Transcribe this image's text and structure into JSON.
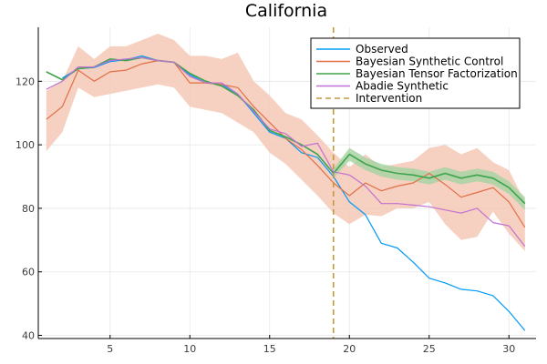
{
  "chart_data": {
    "type": "line",
    "title": "California",
    "xlabel": "",
    "ylabel": "",
    "xlim": [
      0.5,
      31.7
    ],
    "ylim": [
      39,
      137
    ],
    "xticks": [
      5,
      10,
      15,
      20,
      25,
      30
    ],
    "yticks": [
      40,
      60,
      80,
      100,
      120
    ],
    "grid": true,
    "legend_position": "top-right",
    "x": [
      1,
      2,
      3,
      4,
      5,
      6,
      7,
      8,
      9,
      10,
      11,
      12,
      13,
      14,
      15,
      16,
      17,
      18,
      19,
      20,
      21,
      22,
      23,
      24,
      25,
      26,
      27,
      28,
      29,
      30,
      31
    ],
    "series": [
      {
        "name": "Observed",
        "color": "#009AFA",
        "style": "solid",
        "values": [
          null,
          121.0,
          124.0,
          124.3,
          126.2,
          126.8,
          128.0,
          126.5,
          126.0,
          122.0,
          119.5,
          119.0,
          116.0,
          110.0,
          104.0,
          102.0,
          97.5,
          96.0,
          90.0,
          82.0,
          78.0,
          69.0,
          67.5,
          63.0,
          58.0,
          56.5,
          54.5,
          54.0,
          52.5,
          47.5,
          41.5
        ]
      },
      {
        "name": "Bayesian Synthetic Control",
        "color": "#E26F46",
        "style": "solid",
        "band_color": "#F4C8B5",
        "values": [
          108.0,
          112.0,
          123.5,
          120.0,
          123.0,
          123.5,
          125.5,
          126.5,
          126.0,
          119.5,
          119.5,
          119.0,
          118.0,
          112.0,
          107.0,
          102.0,
          98.5,
          93.5,
          88.0,
          84.0,
          88.0,
          85.5,
          87.0,
          88.0,
          91.0,
          87.5,
          83.5,
          85.0,
          86.5,
          82.0,
          74.0
        ],
        "lower": [
          98.0,
          104.0,
          118.0,
          115.0,
          116.0,
          117.0,
          118.0,
          119.0,
          118.0,
          112.0,
          111.0,
          110.0,
          107.0,
          104.0,
          97.5,
          94.0,
          89.0,
          84.0,
          78.5,
          75.0,
          78.0,
          77.5,
          80.0,
          80.0,
          82.0,
          75.0,
          70.0,
          71.0,
          79.0,
          72.0,
          66.5
        ],
        "upper": [
          117.0,
          120.0,
          131.0,
          127.0,
          131.0,
          131.0,
          133.0,
          135.0,
          133.0,
          128.0,
          128.0,
          127.0,
          129.0,
          120.0,
          115.5,
          110.0,
          108.0,
          103.0,
          97.5,
          93.0,
          97.0,
          93.0,
          94.0,
          95.0,
          99.0,
          100.0,
          97.0,
          99.0,
          94.5,
          92.0,
          82.0
        ]
      },
      {
        "name": "Bayesian Tensor Factorization",
        "color": "#3DA44D",
        "style": "solid",
        "band_color": "#A9D3A4",
        "values": [
          123.0,
          120.5,
          124.0,
          124.5,
          127.0,
          126.5,
          127.5,
          126.5,
          126.0,
          122.5,
          120.0,
          118.5,
          115.5,
          111.0,
          104.5,
          102.5,
          100.0,
          97.0,
          91.0,
          97.0,
          94.0,
          92.0,
          91.0,
          90.5,
          89.5,
          91.0,
          89.5,
          90.5,
          89.5,
          86.5,
          81.5
        ],
        "lower": [
          null,
          null,
          null,
          null,
          null,
          null,
          null,
          null,
          null,
          null,
          null,
          null,
          null,
          null,
          null,
          null,
          null,
          null,
          89.5,
          95.0,
          92.0,
          90.0,
          89.0,
          88.5,
          87.5,
          89.0,
          87.5,
          88.5,
          87.5,
          84.5,
          79.5
        ],
        "upper": [
          null,
          null,
          null,
          null,
          null,
          null,
          null,
          null,
          null,
          null,
          null,
          null,
          null,
          null,
          null,
          null,
          null,
          null,
          92.5,
          99.0,
          96.0,
          94.0,
          93.0,
          92.5,
          91.5,
          93.0,
          91.5,
          92.5,
          91.5,
          88.5,
          83.5
        ]
      },
      {
        "name": "Abadie Synthetic",
        "color": "#C271D2",
        "style": "solid",
        "values": [
          117.5,
          120.0,
          124.5,
          124.5,
          126.5,
          127.0,
          127.5,
          126.5,
          126.0,
          121.5,
          119.5,
          119.5,
          116.0,
          110.5,
          105.0,
          103.5,
          99.5,
          100.5,
          91.5,
          90.5,
          87.0,
          81.5,
          81.5,
          81.0,
          80.5,
          79.5,
          78.5,
          80.0,
          75.5,
          74.5,
          68.0
        ]
      }
    ],
    "vlines": [
      {
        "name": "Intervention",
        "x": 19,
        "color": "#C49A3A",
        "style": "dashed"
      }
    ]
  }
}
